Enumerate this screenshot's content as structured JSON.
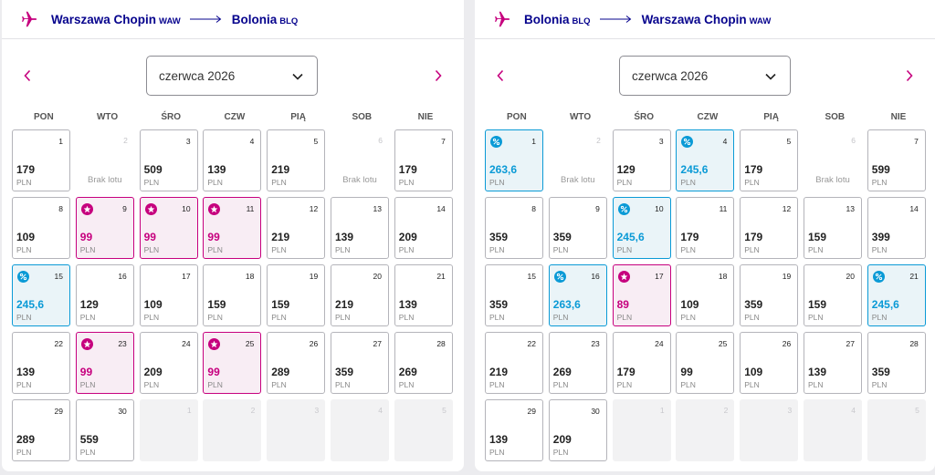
{
  "colors": {
    "brand_magenta": "#c6007e",
    "brand_navy": "#06038d",
    "discount_blue": "#0a9ad6"
  },
  "calendars": [
    {
      "route": {
        "from_city": "Warszawa Chopin",
        "from_code": "WAW",
        "to_city": "Bolonia",
        "to_code": "BLQ"
      },
      "month": "czerwca 2026",
      "weekdays": [
        "PON",
        "WTO",
        "ŚRO",
        "CZW",
        "PIĄ",
        "SOB",
        "NIE"
      ],
      "no_flight_label": "Brak lotu",
      "currency": "PLN",
      "days": [
        {
          "day": "1",
          "price": "179",
          "type": "normal"
        },
        {
          "day": "2",
          "price": "",
          "type": "noflight"
        },
        {
          "day": "3",
          "price": "509",
          "type": "normal"
        },
        {
          "day": "4",
          "price": "139",
          "type": "normal"
        },
        {
          "day": "5",
          "price": "219",
          "type": "normal"
        },
        {
          "day": "6",
          "price": "",
          "type": "noflight"
        },
        {
          "day": "7",
          "price": "179",
          "type": "normal"
        },
        {
          "day": "8",
          "price": "109",
          "type": "normal"
        },
        {
          "day": "9",
          "price": "99",
          "type": "promo"
        },
        {
          "day": "10",
          "price": "99",
          "type": "promo"
        },
        {
          "day": "11",
          "price": "99",
          "type": "promo"
        },
        {
          "day": "12",
          "price": "219",
          "type": "normal"
        },
        {
          "day": "13",
          "price": "139",
          "type": "normal"
        },
        {
          "day": "14",
          "price": "209",
          "type": "normal"
        },
        {
          "day": "15",
          "price": "245,6",
          "type": "discount"
        },
        {
          "day": "16",
          "price": "129",
          "type": "normal"
        },
        {
          "day": "17",
          "price": "109",
          "type": "normal"
        },
        {
          "day": "18",
          "price": "159",
          "type": "normal"
        },
        {
          "day": "19",
          "price": "159",
          "type": "normal"
        },
        {
          "day": "20",
          "price": "219",
          "type": "normal"
        },
        {
          "day": "21",
          "price": "139",
          "type": "normal"
        },
        {
          "day": "22",
          "price": "139",
          "type": "normal"
        },
        {
          "day": "23",
          "price": "99",
          "type": "promo"
        },
        {
          "day": "24",
          "price": "209",
          "type": "normal"
        },
        {
          "day": "25",
          "price": "99",
          "type": "promo"
        },
        {
          "day": "26",
          "price": "289",
          "type": "normal"
        },
        {
          "day": "27",
          "price": "359",
          "type": "normal"
        },
        {
          "day": "28",
          "price": "269",
          "type": "normal"
        },
        {
          "day": "29",
          "price": "289",
          "type": "normal"
        },
        {
          "day": "30",
          "price": "559",
          "type": "normal"
        },
        {
          "day": "1",
          "price": "",
          "type": "empty"
        },
        {
          "day": "2",
          "price": "",
          "type": "empty"
        },
        {
          "day": "3",
          "price": "",
          "type": "empty"
        },
        {
          "day": "4",
          "price": "",
          "type": "empty"
        },
        {
          "day": "5",
          "price": "",
          "type": "empty"
        }
      ]
    },
    {
      "route": {
        "from_city": "Bolonia",
        "from_code": "BLQ",
        "to_city": "Warszawa Chopin",
        "to_code": "WAW"
      },
      "month": "czerwca 2026",
      "weekdays": [
        "PON",
        "WTO",
        "ŚRO",
        "CZW",
        "PIĄ",
        "SOB",
        "NIE"
      ],
      "no_flight_label": "Brak lotu",
      "currency": "PLN",
      "days": [
        {
          "day": "1",
          "price": "263,6",
          "type": "discount"
        },
        {
          "day": "2",
          "price": "",
          "type": "noflight"
        },
        {
          "day": "3",
          "price": "129",
          "type": "normal"
        },
        {
          "day": "4",
          "price": "245,6",
          "type": "discount"
        },
        {
          "day": "5",
          "price": "179",
          "type": "normal"
        },
        {
          "day": "6",
          "price": "",
          "type": "noflight"
        },
        {
          "day": "7",
          "price": "599",
          "type": "normal"
        },
        {
          "day": "8",
          "price": "359",
          "type": "normal"
        },
        {
          "day": "9",
          "price": "359",
          "type": "normal"
        },
        {
          "day": "10",
          "price": "245,6",
          "type": "discount"
        },
        {
          "day": "11",
          "price": "179",
          "type": "normal"
        },
        {
          "day": "12",
          "price": "179",
          "type": "normal"
        },
        {
          "day": "13",
          "price": "159",
          "type": "normal"
        },
        {
          "day": "14",
          "price": "399",
          "type": "normal"
        },
        {
          "day": "15",
          "price": "359",
          "type": "normal"
        },
        {
          "day": "16",
          "price": "263,6",
          "type": "discount"
        },
        {
          "day": "17",
          "price": "89",
          "type": "promo"
        },
        {
          "day": "18",
          "price": "109",
          "type": "normal"
        },
        {
          "day": "19",
          "price": "359",
          "type": "normal"
        },
        {
          "day": "20",
          "price": "159",
          "type": "normal"
        },
        {
          "day": "21",
          "price": "245,6",
          "type": "discount"
        },
        {
          "day": "22",
          "price": "219",
          "type": "normal"
        },
        {
          "day": "23",
          "price": "269",
          "type": "normal"
        },
        {
          "day": "24",
          "price": "179",
          "type": "normal"
        },
        {
          "day": "25",
          "price": "99",
          "type": "normal"
        },
        {
          "day": "26",
          "price": "109",
          "type": "normal"
        },
        {
          "day": "27",
          "price": "139",
          "type": "normal"
        },
        {
          "day": "28",
          "price": "359",
          "type": "normal"
        },
        {
          "day": "29",
          "price": "139",
          "type": "normal"
        },
        {
          "day": "30",
          "price": "209",
          "type": "normal"
        },
        {
          "day": "1",
          "price": "",
          "type": "empty"
        },
        {
          "day": "2",
          "price": "",
          "type": "empty"
        },
        {
          "day": "3",
          "price": "",
          "type": "empty"
        },
        {
          "day": "4",
          "price": "",
          "type": "empty"
        },
        {
          "day": "5",
          "price": "",
          "type": "empty"
        }
      ]
    }
  ]
}
